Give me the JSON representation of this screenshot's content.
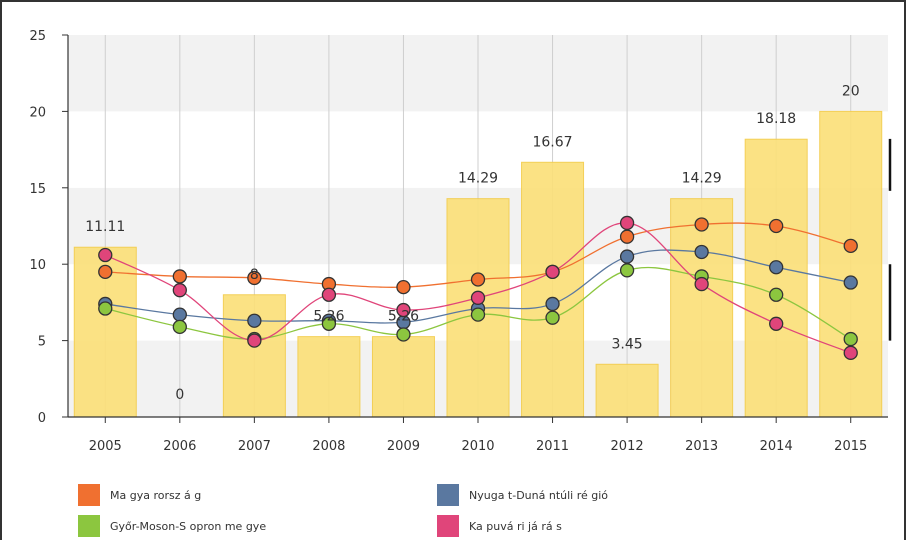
{
  "chart_data": {
    "type": "bar+line",
    "categories": [
      "2005",
      "2006",
      "2007",
      "2008",
      "2009",
      "2010",
      "2011",
      "2012",
      "2013",
      "2014",
      "2015"
    ],
    "ylim": [
      0,
      25
    ],
    "yticks": [
      0,
      5,
      10,
      15,
      20,
      25
    ],
    "bars": {
      "color": "#fbe07a",
      "values": [
        11.11,
        0,
        8,
        5.26,
        5.26,
        14.29,
        16.67,
        3.45,
        14.29,
        18.18,
        20
      ],
      "labels": [
        "11.11",
        "0",
        "8",
        "5.26",
        "5.26",
        "14.29",
        "16.67",
        "3.45",
        "14.29",
        "18.18",
        "20"
      ]
    },
    "series": [
      {
        "name": "Magyarország",
        "color": "#f07030",
        "values": [
          9.5,
          9.2,
          9.1,
          8.7,
          8.5,
          9.0,
          9.5,
          11.8,
          12.6,
          12.5,
          11.2
        ]
      },
      {
        "name": "Nyugat-Dunántúli régió",
        "color": "#5a78a0",
        "values": [
          7.4,
          6.7,
          6.3,
          6.3,
          6.2,
          7.1,
          7.4,
          10.5,
          10.8,
          9.8,
          8.8
        ]
      },
      {
        "name": "Győr-Moson-Sopron megye",
        "color": "#8cc63f",
        "values": [
          7.1,
          5.9,
          5.1,
          6.1,
          5.4,
          6.7,
          6.5,
          9.6,
          9.2,
          8.0,
          5.1
        ]
      },
      {
        "name": "Kapuvári járás",
        "color": "#e0457a",
        "values": [
          10.6,
          8.3,
          5.0,
          8.0,
          7.0,
          7.8,
          9.5,
          12.7,
          8.7,
          6.1,
          4.2
        ]
      }
    ],
    "legend": {
      "position": "bottom",
      "items": [
        {
          "label": "Ma gya rorsz á g",
          "color": "#f07030"
        },
        {
          "label": "Nyuga t-Duná ntúli ré gió",
          "color": "#5a78a0"
        },
        {
          "label": "Győr-Moson-S opron me gye",
          "color": "#8cc63f"
        },
        {
          "label": "Ka puvá ri já rá s",
          "color": "#e0457a"
        }
      ]
    },
    "grid": true
  }
}
